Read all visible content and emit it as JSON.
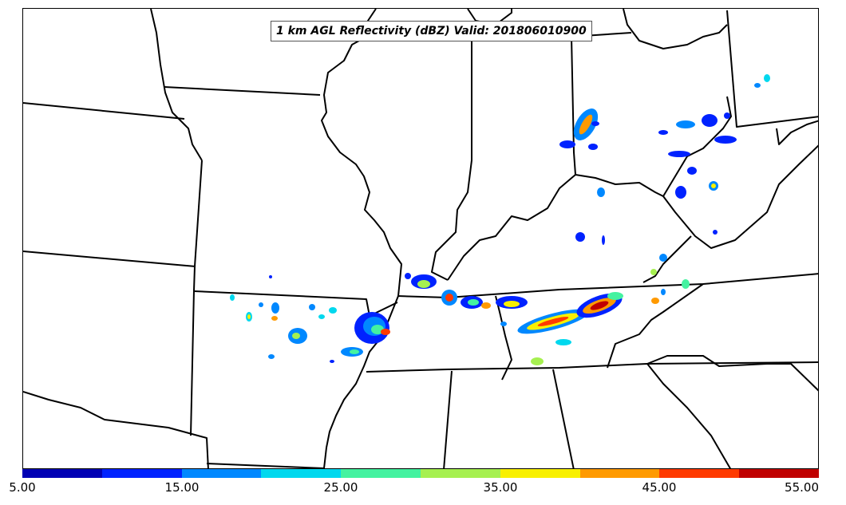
{
  "title": "1 km AGL Reflectivity (dBZ) Valid: 201806010900",
  "colorbar": {
    "colors": [
      "#0000b4",
      "#0022ff",
      "#0088ff",
      "#00d8ee",
      "#44f2a0",
      "#a6f050",
      "#f8f000",
      "#ff9a00",
      "#ff3a00",
      "#c00000"
    ],
    "ticks": [
      "5.00",
      "15.00",
      "25.00",
      "35.00",
      "45.00",
      "55.00"
    ],
    "range": [
      5,
      55
    ]
  },
  "map": {
    "basemap_color": "#000000",
    "background": "#ffffff",
    "region": "Central / Southeastern United States",
    "echo_bands": [
      "5-15 dBZ blue",
      "15-25 dBZ cyan",
      "25-35 dBZ green",
      "35-45 dBZ yellow/orange",
      "45-55 dBZ red"
    ]
  }
}
